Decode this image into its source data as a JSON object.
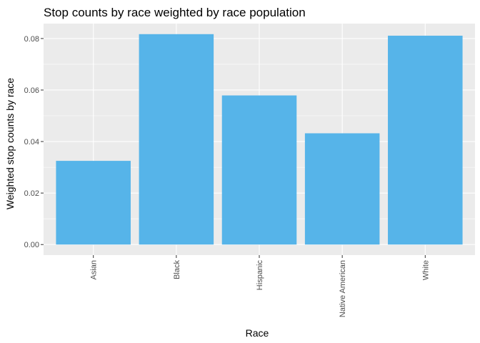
{
  "chart_data": {
    "type": "bar",
    "title": "Stop counts by race weighted by race population",
    "xlabel": "Race",
    "ylabel": "Weighted stop counts by race",
    "categories": [
      "Asian",
      "Black",
      "Hispanic",
      "Native American",
      "White"
    ],
    "values": [
      0.0325,
      0.0817,
      0.0579,
      0.0432,
      0.0811
    ],
    "ylim": [
      -0.0041,
      0.0858
    ],
    "yticks": [
      0,
      0.02,
      0.04,
      0.06,
      0.08
    ],
    "ytick_labels": [
      "0.00",
      "0.02",
      "0.04",
      "0.06",
      "0.08"
    ],
    "grid": true,
    "legend": "none",
    "bar_color": "#56B4E9",
    "panel_color": "#EBEBEB",
    "grid_color": "#FFFFFF"
  }
}
